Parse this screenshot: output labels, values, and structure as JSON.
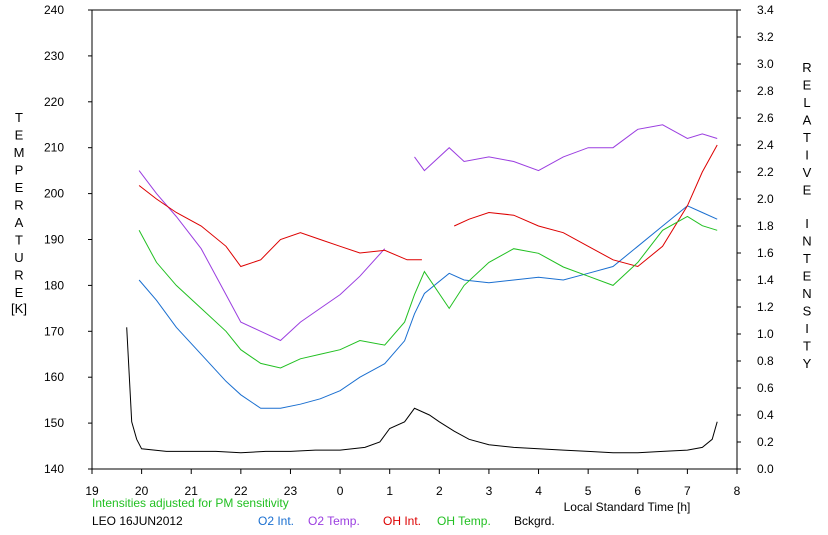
{
  "chart_data": {
    "type": "line",
    "left_axis_title": "TEMPERATURE",
    "left_axis_unit": "[K]",
    "right_axis_title": "RELATIVE INTENSITY",
    "xlabel": "Local Standard Time [h]",
    "x_ticks": [
      "19",
      "20",
      "21",
      "22",
      "23",
      "0",
      "1",
      "2",
      "3",
      "4",
      "5",
      "6",
      "7",
      "8"
    ],
    "y_left_ticks": [
      "140",
      "150",
      "160",
      "170",
      "180",
      "190",
      "200",
      "210",
      "220",
      "230",
      "240"
    ],
    "y_right_ticks": [
      "0.0",
      "0.2",
      "0.4",
      "0.6",
      "0.8",
      "1.0",
      "1.2",
      "1.4",
      "1.6",
      "1.8",
      "2.0",
      "2.2",
      "2.4",
      "2.6",
      "2.8",
      "3.0",
      "3.2",
      "3.4"
    ],
    "xlim": [
      19,
      32
    ],
    "ylim_left": [
      140,
      240
    ],
    "ylim_right": [
      0,
      3.4
    ],
    "grid": false,
    "footnote": "Intensities adjusted for PM sensitivity",
    "station": "LEO 16JUN2012",
    "series": [
      {
        "name": "O2 Int.",
        "color": "#1a6fd0",
        "axis": "right",
        "x": [
          19.95,
          20.3,
          20.7,
          21.2,
          21.7,
          22.0,
          22.4,
          22.8,
          23.2,
          23.6,
          24.0,
          24.4,
          24.9,
          25.3,
          25.5,
          25.7,
          26.2,
          26.5,
          27.0,
          27.5,
          28.0,
          28.5,
          29.0,
          29.5,
          30.0,
          30.5,
          31.0,
          31.3,
          31.6
        ],
        "y": [
          1.4,
          1.25,
          1.05,
          0.85,
          0.65,
          0.55,
          0.45,
          0.45,
          0.48,
          0.52,
          0.58,
          0.68,
          0.78,
          0.95,
          1.15,
          1.3,
          1.45,
          1.4,
          1.38,
          1.4,
          1.42,
          1.4,
          1.45,
          1.5,
          1.65,
          1.8,
          1.95,
          1.9,
          1.85
        ]
      },
      {
        "name": "O2 Temp.",
        "color": "#9b3ee0",
        "axis": "left",
        "x": [
          19.95,
          20.3,
          20.7,
          21.2,
          21.7,
          22.0,
          22.4,
          22.8,
          23.2,
          23.6,
          24.0,
          24.4,
          24.9,
          25.5,
          25.7,
          26.2,
          26.5,
          27.0,
          27.5,
          28.0,
          28.5,
          29.0,
          29.5,
          30.0,
          30.5,
          31.0,
          31.3,
          31.6
        ],
        "y": [
          205,
          200,
          195,
          188,
          178,
          172,
          170,
          168,
          172,
          175,
          178,
          182,
          188,
          208,
          205,
          210,
          207,
          208,
          207,
          205,
          208,
          210,
          210,
          214,
          215,
          212,
          213,
          212
        ]
      },
      {
        "name": "OH Int.",
        "color": "#dd0000",
        "axis": "right",
        "x": [
          19.95,
          20.3,
          20.7,
          21.2,
          21.7,
          22.0,
          22.4,
          22.8,
          23.2,
          23.6,
          24.0,
          24.4,
          24.9,
          25.35,
          25.65,
          26.3,
          26.6,
          27.0,
          27.5,
          28.0,
          28.5,
          29.0,
          29.5,
          30.0,
          30.5,
          31.0,
          31.3,
          31.6
        ],
        "y": [
          2.1,
          2.0,
          1.9,
          1.8,
          1.65,
          1.5,
          1.55,
          1.7,
          1.75,
          1.7,
          1.65,
          1.6,
          1.62,
          1.55,
          1.55,
          1.8,
          1.85,
          1.9,
          1.88,
          1.8,
          1.75,
          1.65,
          1.55,
          1.5,
          1.65,
          1.95,
          2.2,
          2.4
        ]
      },
      {
        "name": "OH Temp.",
        "color": "#22c022",
        "axis": "left",
        "x": [
          19.95,
          20.3,
          20.7,
          21.2,
          21.7,
          22.0,
          22.4,
          22.8,
          23.2,
          23.6,
          24.0,
          24.4,
          24.9,
          25.3,
          25.5,
          25.7,
          26.2,
          26.5,
          27.0,
          27.5,
          28.0,
          28.5,
          29.0,
          29.5,
          30.0,
          30.5,
          31.0,
          31.3,
          31.6
        ],
        "y": [
          192,
          185,
          180,
          175,
          170,
          166,
          163,
          162,
          164,
          165,
          166,
          168,
          167,
          172,
          178,
          183,
          175,
          180,
          185,
          188,
          187,
          184,
          182,
          180,
          185,
          192,
          195,
          193,
          192
        ]
      },
      {
        "name": "Bckgrd.",
        "color": "#000000",
        "axis": "right",
        "x": [
          19.7,
          19.75,
          19.8,
          19.9,
          20.0,
          20.5,
          21.0,
          21.5,
          22.0,
          22.5,
          23.0,
          23.5,
          24.0,
          24.5,
          24.8,
          25.0,
          25.3,
          25.5,
          25.8,
          26.0,
          26.3,
          26.6,
          27.0,
          27.5,
          28.0,
          28.5,
          29.0,
          29.5,
          30.0,
          30.5,
          31.0,
          31.3,
          31.5,
          31.6
        ],
        "y": [
          1.05,
          0.7,
          0.35,
          0.22,
          0.15,
          0.13,
          0.13,
          0.13,
          0.12,
          0.13,
          0.13,
          0.14,
          0.14,
          0.16,
          0.2,
          0.3,
          0.35,
          0.45,
          0.4,
          0.35,
          0.28,
          0.22,
          0.18,
          0.16,
          0.15,
          0.14,
          0.13,
          0.12,
          0.12,
          0.13,
          0.14,
          0.16,
          0.22,
          0.35
        ]
      }
    ]
  }
}
